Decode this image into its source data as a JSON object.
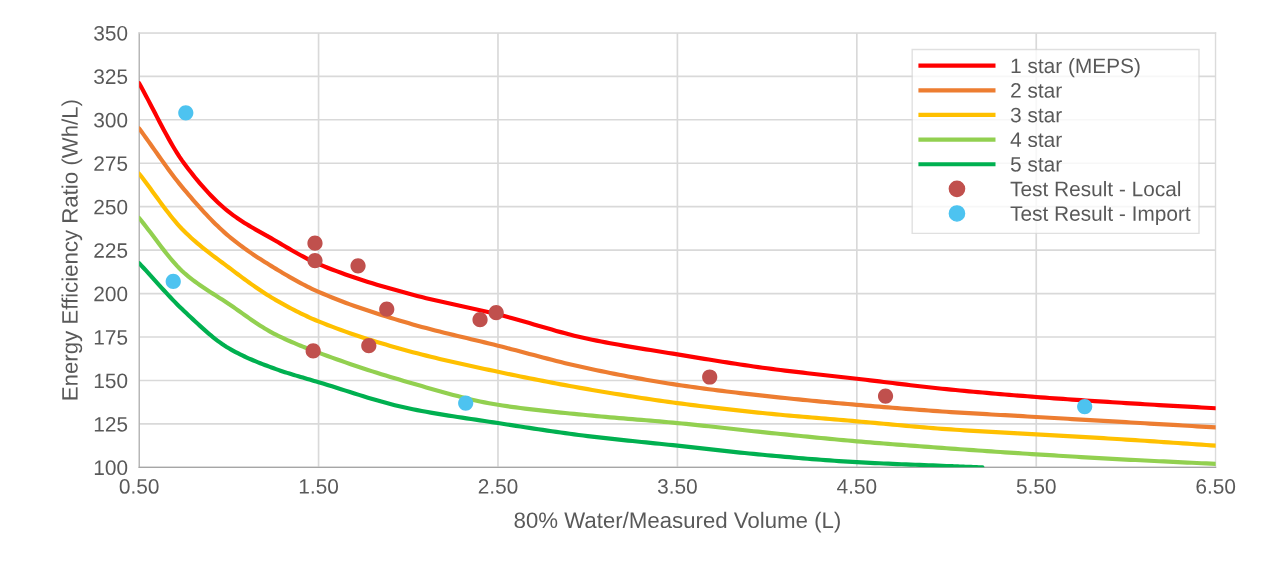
{
  "chart_data": {
    "type": "line",
    "xlabel": "80% Water/Measured Volume (L)",
    "ylabel": "Energy Efficiency Ratio (Wh/L)",
    "xlim": [
      0.5,
      6.5
    ],
    "xticks": [
      {
        "value": 0.5,
        "label": "0.50"
      },
      {
        "value": 1.5,
        "label": "1.50"
      },
      {
        "value": 2.5,
        "label": "2.50"
      },
      {
        "value": 3.5,
        "label": "3.50"
      },
      {
        "value": 4.5,
        "label": "4.50"
      },
      {
        "value": 5.5,
        "label": "5.50"
      },
      {
        "value": 6.5,
        "label": "6.50"
      }
    ],
    "ylim": [
      100,
      350
    ],
    "yticks": [
      100,
      125,
      150,
      175,
      200,
      225,
      250,
      275,
      300,
      325,
      350
    ],
    "grid": true,
    "legend": "top right",
    "marker": "none",
    "line_style": "solid",
    "x": [
      0.5,
      0.75,
      1.0,
      1.25,
      1.5,
      2.0,
      2.5,
      3.0,
      3.5,
      4.0,
      4.5,
      5.0,
      5.5,
      6.0,
      6.5
    ],
    "series": [
      {
        "name": "1 star (MEPS)",
        "color": "#ff0000",
        "values": [
          321,
          275,
          247,
          231,
          217,
          200,
          188,
          174,
          165,
          157,
          151,
          145,
          140.5,
          137,
          134
        ]
      },
      {
        "name": "2 star",
        "color": "#ed7d31",
        "values": [
          295,
          260,
          233,
          215,
          201,
          183,
          170,
          157,
          147.5,
          141,
          136,
          132,
          129,
          126,
          123
        ]
      },
      {
        "name": "3 star",
        "color": "#ffc000",
        "values": [
          269,
          236,
          215,
          197,
          184,
          167,
          155,
          145,
          137,
          131,
          126.5,
          122,
          119,
          116,
          112.5
        ]
      },
      {
        "name": "4 star",
        "color": "#92d050",
        "values": [
          243.5,
          212,
          194,
          177,
          166,
          149,
          136,
          130,
          125.5,
          120,
          115,
          111,
          107.5,
          104.5,
          102
        ]
      },
      {
        "name": "5 star",
        "color": "#00b050",
        "x": [
          0.5,
          0.75,
          1.0,
          1.25,
          1.5,
          2.0,
          2.5,
          3.0,
          3.5,
          4.0,
          4.5,
          5.0,
          5.2
        ],
        "values": [
          217.5,
          190,
          168.5,
          157,
          149,
          134,
          125.5,
          118,
          112.5,
          107,
          103,
          100.8,
          100
        ]
      },
      {
        "name": "Test Result - Local",
        "type": "scatter",
        "marker": "circle",
        "color": "#c0504d",
        "x": [
          1.48,
          1.48,
          1.47,
          1.72,
          1.88,
          1.78,
          2.4,
          2.49,
          3.68,
          4.66
        ],
        "values": [
          229,
          219,
          167,
          216,
          191,
          170,
          185,
          189,
          152,
          141
        ]
      },
      {
        "name": "Test Result - Import",
        "type": "scatter",
        "marker": "circle",
        "color": "#4dc3f0",
        "x": [
          0.76,
          0.69,
          2.32,
          5.77
        ],
        "values": [
          304,
          207,
          137,
          135
        ]
      }
    ]
  }
}
